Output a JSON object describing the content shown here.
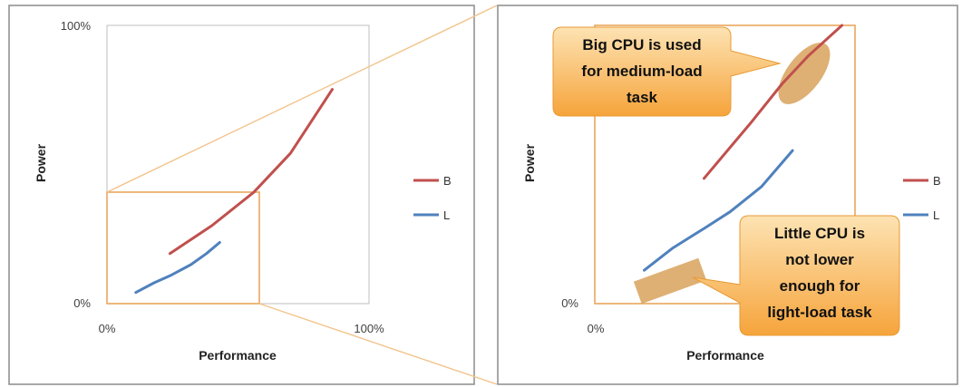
{
  "colors": {
    "series_B": "#c0504d",
    "series_L": "#4f81bd",
    "zoom": "#e9a75c",
    "callout_top": "#fde3b3",
    "callout_bottom": "#f6a43b",
    "highlight": "#d8a25c"
  },
  "chart_data": [
    {
      "type": "line",
      "panel": "full",
      "title": "",
      "xlabel": "Performance",
      "ylabel": "Power",
      "xlim": [
        0,
        100
      ],
      "ylim": [
        0,
        100
      ],
      "x_ticks": [
        "0%",
        "100%"
      ],
      "y_ticks": [
        "0%",
        "100%"
      ],
      "grid": false,
      "legend": "right",
      "zoom_region": {
        "xlim": [
          0,
          58
        ],
        "ylim": [
          0,
          40
        ]
      },
      "series": [
        {
          "name": "B",
          "points": [
            [
              24,
              18
            ],
            [
              40,
              28
            ],
            [
              56,
              40
            ],
            [
              70,
              54
            ],
            [
              86,
              77
            ]
          ]
        },
        {
          "name": "L",
          "points": [
            [
              11,
              4
            ],
            [
              18,
              7.5
            ],
            [
              24,
              10
            ],
            [
              32,
              14
            ],
            [
              38,
              18
            ],
            [
              43,
              22
            ]
          ]
        }
      ]
    },
    {
      "type": "line",
      "panel": "zoomed",
      "title": "",
      "xlabel": "Performance",
      "ylabel": "Power",
      "xlim": [
        0,
        100
      ],
      "ylim": [
        0,
        100
      ],
      "x_ticks": [
        "0%"
      ],
      "y_ticks": [
        "0%"
      ],
      "grid": false,
      "legend": "right",
      "series": [
        {
          "name": "B",
          "points": [
            [
              42,
              45
            ],
            [
              60,
              65
            ],
            [
              72,
              79
            ],
            [
              82,
              89
            ],
            [
              95,
              100
            ]
          ]
        },
        {
          "name": "L",
          "points": [
            [
              19,
              12
            ],
            [
              30,
              20
            ],
            [
              42,
              27
            ],
            [
              52,
              33
            ],
            [
              64,
              42
            ],
            [
              76,
              55
            ]
          ]
        }
      ],
      "annotations": [
        {
          "text": "Big CPU is used for medium-load task",
          "lines": [
            "Big CPU is used",
            "for medium-load",
            "task"
          ],
          "target": "B"
        },
        {
          "text": "Little CPU is not lower enough for light-load task",
          "lines": [
            "Little CPU is",
            "not lower",
            "enough for",
            "light-load task"
          ],
          "target": "L"
        }
      ]
    }
  ]
}
